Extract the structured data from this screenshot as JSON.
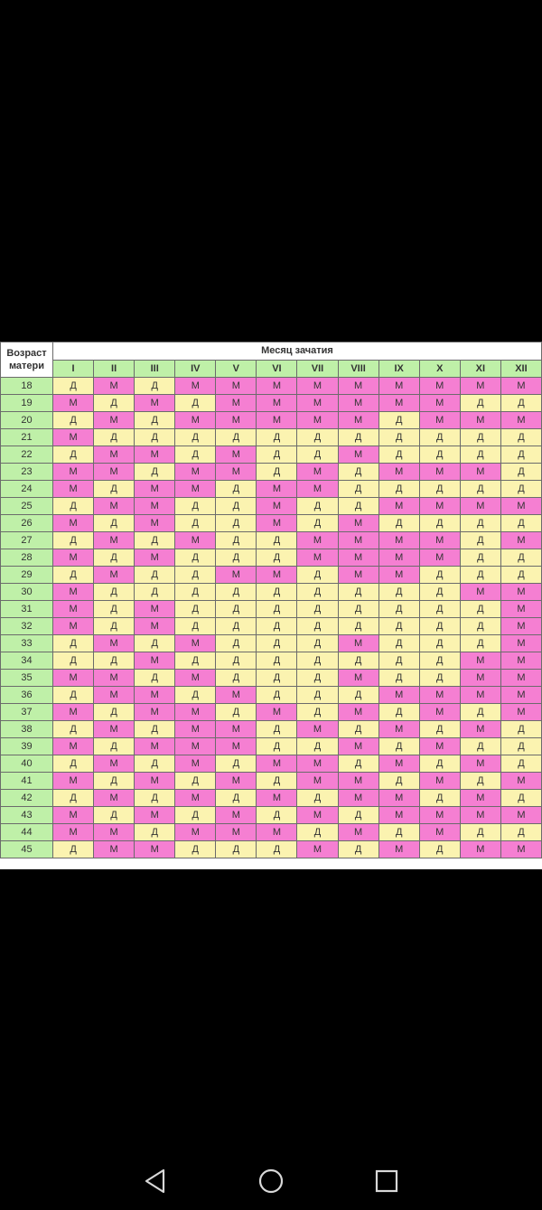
{
  "table": {
    "corner_label_line1": "Возраст",
    "corner_label_line2": "матери",
    "title": "Месяц зачатия",
    "months": [
      "I",
      "II",
      "III",
      "IV",
      "V",
      "VI",
      "VII",
      "VIII",
      "IX",
      "X",
      "XI",
      "XII"
    ],
    "rows": [
      {
        "age": "18",
        "cells": [
          "Д",
          "М",
          "Д",
          "М",
          "М",
          "М",
          "М",
          "М",
          "М",
          "М",
          "М",
          "М"
        ]
      },
      {
        "age": "19",
        "cells": [
          "М",
          "Д",
          "М",
          "Д",
          "М",
          "М",
          "М",
          "М",
          "М",
          "М",
          "Д",
          "Д"
        ]
      },
      {
        "age": "20",
        "cells": [
          "Д",
          "М",
          "Д",
          "М",
          "М",
          "М",
          "М",
          "М",
          "Д",
          "М",
          "М",
          "М"
        ]
      },
      {
        "age": "21",
        "cells": [
          "М",
          "Д",
          "Д",
          "Д",
          "Д",
          "Д",
          "Д",
          "Д",
          "Д",
          "Д",
          "Д",
          "Д"
        ]
      },
      {
        "age": "22",
        "cells": [
          "Д",
          "М",
          "М",
          "Д",
          "М",
          "Д",
          "Д",
          "М",
          "Д",
          "Д",
          "Д",
          "Д"
        ]
      },
      {
        "age": "23",
        "cells": [
          "М",
          "М",
          "Д",
          "М",
          "М",
          "Д",
          "М",
          "Д",
          "М",
          "М",
          "М",
          "Д"
        ]
      },
      {
        "age": "24",
        "cells": [
          "М",
          "Д",
          "М",
          "М",
          "Д",
          "М",
          "М",
          "Д",
          "Д",
          "Д",
          "Д",
          "Д"
        ]
      },
      {
        "age": "25",
        "cells": [
          "Д",
          "М",
          "М",
          "Д",
          "Д",
          "М",
          "Д",
          "Д",
          "М",
          "М",
          "М",
          "М"
        ]
      },
      {
        "age": "26",
        "cells": [
          "М",
          "Д",
          "М",
          "Д",
          "Д",
          "М",
          "Д",
          "М",
          "Д",
          "Д",
          "Д",
          "Д"
        ]
      },
      {
        "age": "27",
        "cells": [
          "Д",
          "М",
          "Д",
          "М",
          "Д",
          "Д",
          "М",
          "М",
          "М",
          "М",
          "Д",
          "М"
        ]
      },
      {
        "age": "28",
        "cells": [
          "М",
          "Д",
          "М",
          "Д",
          "Д",
          "Д",
          "М",
          "М",
          "М",
          "М",
          "Д",
          "Д"
        ]
      },
      {
        "age": "29",
        "cells": [
          "Д",
          "М",
          "Д",
          "Д",
          "М",
          "М",
          "Д",
          "М",
          "М",
          "Д",
          "Д",
          "Д"
        ]
      },
      {
        "age": "30",
        "cells": [
          "М",
          "Д",
          "Д",
          "Д",
          "Д",
          "Д",
          "Д",
          "Д",
          "Д",
          "Д",
          "М",
          "М"
        ]
      },
      {
        "age": "31",
        "cells": [
          "М",
          "Д",
          "М",
          "Д",
          "Д",
          "Д",
          "Д",
          "Д",
          "Д",
          "Д",
          "Д",
          "М"
        ]
      },
      {
        "age": "32",
        "cells": [
          "М",
          "Д",
          "М",
          "Д",
          "Д",
          "Д",
          "Д",
          "Д",
          "Д",
          "Д",
          "Д",
          "М"
        ]
      },
      {
        "age": "33",
        "cells": [
          "Д",
          "М",
          "Д",
          "М",
          "Д",
          "Д",
          "Д",
          "М",
          "Д",
          "Д",
          "Д",
          "М"
        ]
      },
      {
        "age": "34",
        "cells": [
          "Д",
          "Д",
          "М",
          "Д",
          "Д",
          "Д",
          "Д",
          "Д",
          "Д",
          "Д",
          "М",
          "М"
        ]
      },
      {
        "age": "35",
        "cells": [
          "М",
          "М",
          "Д",
          "М",
          "Д",
          "Д",
          "Д",
          "М",
          "Д",
          "Д",
          "М",
          "М"
        ]
      },
      {
        "age": "36",
        "cells": [
          "Д",
          "М",
          "М",
          "Д",
          "М",
          "Д",
          "Д",
          "Д",
          "М",
          "М",
          "М",
          "М"
        ]
      },
      {
        "age": "37",
        "cells": [
          "М",
          "Д",
          "М",
          "М",
          "Д",
          "М",
          "Д",
          "М",
          "Д",
          "М",
          "Д",
          "М"
        ]
      },
      {
        "age": "38",
        "cells": [
          "Д",
          "М",
          "Д",
          "М",
          "М",
          "Д",
          "М",
          "Д",
          "М",
          "Д",
          "М",
          "Д"
        ]
      },
      {
        "age": "39",
        "cells": [
          "М",
          "Д",
          "М",
          "М",
          "М",
          "Д",
          "Д",
          "М",
          "Д",
          "М",
          "Д",
          "Д"
        ]
      },
      {
        "age": "40",
        "cells": [
          "Д",
          "М",
          "Д",
          "М",
          "Д",
          "М",
          "М",
          "Д",
          "М",
          "Д",
          "М",
          "Д"
        ]
      },
      {
        "age": "41",
        "cells": [
          "М",
          "Д",
          "М",
          "Д",
          "М",
          "Д",
          "М",
          "М",
          "Д",
          "М",
          "Д",
          "М"
        ]
      },
      {
        "age": "42",
        "cells": [
          "Д",
          "М",
          "Д",
          "М",
          "Д",
          "М",
          "Д",
          "М",
          "М",
          "Д",
          "М",
          "Д"
        ]
      },
      {
        "age": "43",
        "cells": [
          "М",
          "Д",
          "М",
          "Д",
          "М",
          "Д",
          "М",
          "Д",
          "М",
          "М",
          "М",
          "М"
        ]
      },
      {
        "age": "44",
        "cells": [
          "М",
          "М",
          "Д",
          "М",
          "М",
          "М",
          "Д",
          "М",
          "Д",
          "М",
          "Д",
          "Д"
        ]
      },
      {
        "age": "45",
        "cells": [
          "Д",
          "М",
          "М",
          "Д",
          "Д",
          "Д",
          "М",
          "Д",
          "М",
          "Д",
          "М",
          "М"
        ]
      }
    ]
  },
  "colors": {
    "male": "#f57fd2",
    "female": "#fbf3b0",
    "header": "#bff0a8",
    "background": "#000000"
  },
  "nav": {
    "back_icon": "triangle-back-icon",
    "home_icon": "circle-home-icon",
    "recent_icon": "square-recents-icon"
  }
}
